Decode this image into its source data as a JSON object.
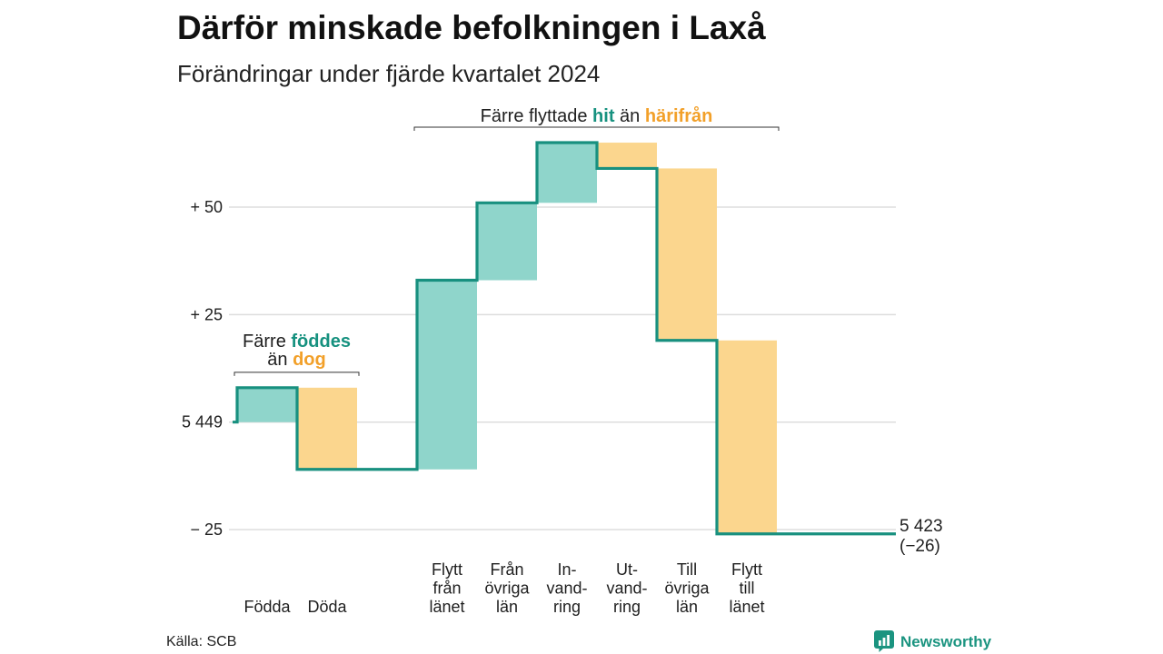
{
  "colors": {
    "increase_fill": "#8fd5cb",
    "decrease_fill": "#fbd68e",
    "step_line": "#18907f",
    "increase_text": "#16917f",
    "decrease_text": "#f2a029",
    "grid": "#dddddd",
    "bracket": "#333333",
    "text": "#1a1a1a",
    "brand": "#1b9480"
  },
  "chart_data": {
    "type": "bar",
    "waterfall": true,
    "title": "Därför minskade befolkningen i Laxå",
    "subtitle": "Förändringar under fjärde kvartalet 2024",
    "start_value": 5449,
    "end_value": 5423,
    "end_label": "5 423",
    "end_change_label": "(−26)",
    "y_axis": {
      "ylim": [
        -27,
        66
      ],
      "ticks": [
        50,
        25,
        0,
        -25
      ],
      "tick_labels": [
        "+ 50",
        "+ 25",
        "5 449",
        "− 25"
      ],
      "grid": true
    },
    "categories": [
      [
        "Födda"
      ],
      [
        "Döda"
      ],
      [
        "Flytt",
        "från",
        "länet"
      ],
      [
        "Från",
        "övriga",
        "län"
      ],
      [
        "In-",
        "vand-",
        "ring"
      ],
      [
        "Ut-",
        "vand-",
        "ring"
      ],
      [
        "Till",
        "övriga",
        "län"
      ],
      [
        "Flytt",
        "till",
        "länet"
      ]
    ],
    "values": [
      8,
      -19,
      44,
      18,
      14,
      -6,
      -40,
      -45
    ],
    "groups": [
      {
        "members": [
          0,
          1
        ],
        "note": {
          "prefix": "Färre",
          "increase_word": "föddes",
          "middle": "än",
          "decrease_word": "dog"
        }
      },
      {
        "members": [
          2,
          3,
          4,
          5,
          6,
          7
        ],
        "note": {
          "prefix": "Färre flyttade",
          "increase_word": "hit",
          "middle": "än",
          "decrease_word": "härifrån"
        }
      }
    ],
    "legend": false
  },
  "footer": {
    "source": "Källa: SCB",
    "brand": "Newsworthy",
    "brand_icon": "newsworthy-logo-icon"
  }
}
